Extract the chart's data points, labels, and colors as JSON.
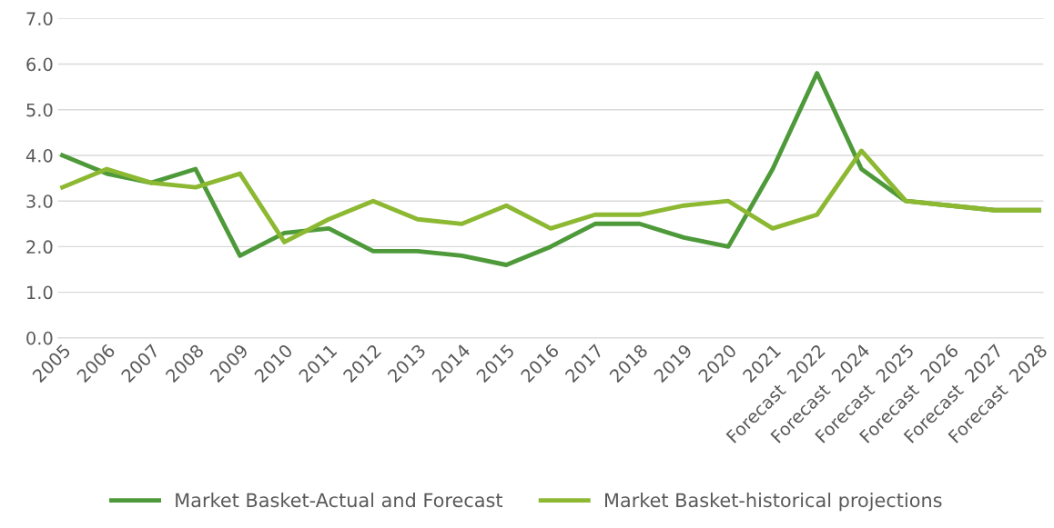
{
  "chart_data": {
    "type": "line",
    "categories": [
      "2005",
      "2006",
      "2007",
      "2008",
      "2009",
      "2010",
      "2011",
      "2012",
      "2013",
      "2014",
      "2015",
      "2016",
      "2017",
      "2018",
      "2019",
      "2020",
      "2021",
      "Forecast  2022",
      "Forecast  2024",
      "Forecast  2025",
      "Forecast  2026",
      "Forecast  2027",
      "Forecast  2028"
    ],
    "series": [
      {
        "name": "Market Basket-Actual and Forecast",
        "color": "#4e9a3a",
        "values": [
          4.0,
          3.6,
          3.4,
          3.7,
          1.8,
          2.3,
          2.4,
          1.9,
          1.9,
          1.8,
          1.6,
          2.0,
          2.5,
          2.5,
          2.2,
          2.0,
          3.7,
          5.8,
          3.7,
          3.0,
          2.9,
          2.8,
          2.8
        ]
      },
      {
        "name": "Market Basket-historical projections",
        "color": "#8cb832",
        "values": [
          3.3,
          3.7,
          3.4,
          3.3,
          3.6,
          2.1,
          2.6,
          3.0,
          2.6,
          2.5,
          2.9,
          2.4,
          2.7,
          2.7,
          2.9,
          3.0,
          2.4,
          2.7,
          4.1,
          3.0,
          2.9,
          2.8,
          2.8
        ]
      }
    ],
    "ylim": [
      0,
      7
    ],
    "yticks": [
      {
        "value": 0,
        "label": "0.0"
      },
      {
        "value": 1,
        "label": "1.0"
      },
      {
        "value": 2,
        "label": "2.0"
      },
      {
        "value": 3,
        "label": "3.0"
      },
      {
        "value": 4,
        "label": "4.0"
      },
      {
        "value": 5,
        "label": "5.0"
      },
      {
        "value": 6,
        "label": "6.0"
      },
      {
        "value": 7,
        "label": "7.0"
      }
    ],
    "grid": "y",
    "legend": "bottom",
    "marker": "none",
    "line_style": "solid"
  }
}
